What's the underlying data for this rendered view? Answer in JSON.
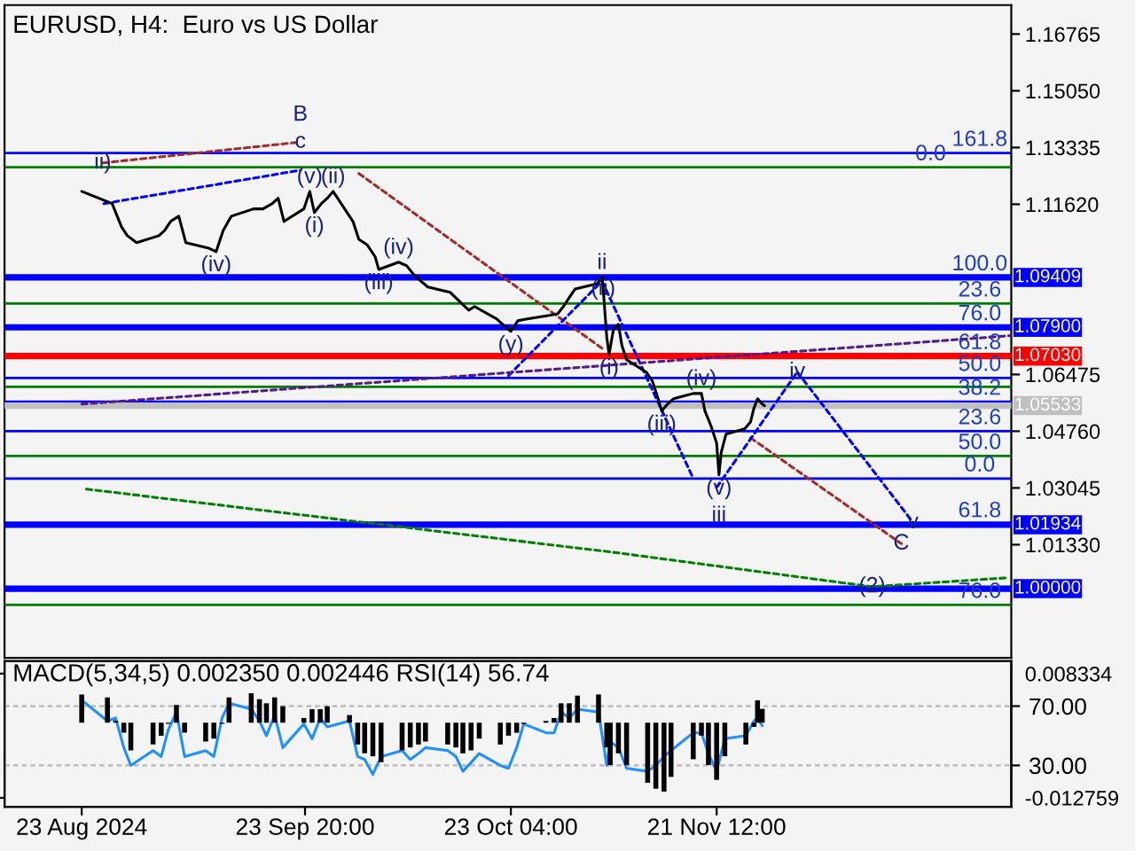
{
  "chart_data": [
    {
      "type": "line",
      "title": "EURUSD, H4:  Euro vs US Dollar",
      "tick_labels": "y",
      "grid": false,
      "xlim": [
        "2024-08-12T00:00",
        "2025-01-02T12:00"
      ],
      "ylim": [
        0.9791,
        1.1764
      ],
      "yticks": [
        1.16765,
        {
          "value": 1.1505,
          "label": "1.15050"
        },
        1.13335,
        {
          "value": 1.1162,
          "label": "1.11620"
        },
        1.06475,
        {
          "value": 1.0476,
          "label": "1.04760"
        },
        1.03045,
        {
          "value": 1.0133,
          "label": "1.01330"
        }
      ],
      "series": [
        {
          "color": "#000000",
          "line_style": "solid",
          "x": [
            "2024-08-23T00:00",
            "2024-08-26T04:00",
            "2024-08-27T08:00",
            "2024-08-28T16:00",
            "2024-08-29T12:00",
            "2024-08-30T20:00",
            "2024-09-03T00:00",
            "2024-09-03T20:00",
            "2024-09-04T16:00",
            "2024-09-05T20:00",
            "2024-09-06T20:00",
            "2024-09-10T00:00",
            "2024-09-11T04:00",
            "2024-09-12T04:00",
            "2024-09-13T08:00",
            "2024-09-16T12:00",
            "2024-09-17T20:00",
            "2024-09-19T04:00",
            "2024-09-20T00:00",
            "2024-09-20T20:00",
            "2024-09-23T16:00",
            "2024-09-24T12:00",
            "2024-09-25T04:00",
            "2024-09-26T04:00",
            "2024-09-27T00:00",
            "2024-09-27T20:00",
            "2024-09-30T16:00",
            "2024-10-01T12:00",
            "2024-10-02T16:00",
            "2024-10-03T20:00",
            "2024-10-04T08:00",
            "2024-10-07T04:00",
            "2024-10-08T08:00",
            "2024-10-09T08:00",
            "2024-10-10T04:00",
            "2024-10-11T08:00",
            "2024-10-14T12:00",
            "2024-10-15T20:00",
            "2024-10-17T04:00",
            "2024-10-18T00:00",
            "2024-10-21T04:00",
            "2024-10-22T00:00",
            "2024-10-23T04:00",
            "2024-10-24T04:00",
            "2024-10-25T08:00",
            "2024-10-28T16:00",
            "2024-10-29T20:00",
            "2024-10-30T16:00",
            "2024-10-31T12:00",
            "2024-11-01T08:00",
            "2024-11-04T12:00",
            "2024-11-05T04:00",
            "2024-11-05T08:00",
            "2024-11-05T20:00",
            "2024-11-06T04:00",
            "2024-11-06T20:00",
            "2024-11-07T12:00",
            "2024-11-08T00:00",
            "2024-11-08T16:00",
            "2024-11-11T12:00",
            "2024-11-12T08:00",
            "2024-11-13T04:00",
            "2024-11-13T16:00",
            "2024-11-14T12:00",
            "2024-11-15T08:00",
            "2024-11-18T04:00",
            "2024-11-19T08:00",
            "2024-11-19T20:00",
            "2024-11-20T16:00",
            "2024-11-21T12:00",
            "2024-11-21T20:00",
            "2024-11-22T04:00",
            "2024-11-22T20:00",
            "2024-11-25T12:00",
            "2024-11-26T08:00",
            "2024-11-26T20:00",
            "2024-11-27T08:00",
            "2024-11-28T00:00",
            "2024-11-28T08:00"
          ],
          "values": [
            1.1201,
            1.1174,
            1.1164,
            1.1094,
            1.1067,
            1.1046,
            1.1067,
            1.1083,
            1.111,
            1.1126,
            1.1046,
            1.103,
            1.1019,
            1.1083,
            1.1126,
            1.1148,
            1.1148,
            1.1164,
            1.118,
            1.111,
            1.1148,
            1.1201,
            1.1137,
            1.1164,
            1.118,
            1.1201,
            1.111,
            1.1056,
            1.104,
            1.1003,
            1.0965,
            1.0987,
            1.0976,
            1.0949,
            1.0933,
            1.0912,
            1.0896,
            1.0869,
            1.0842,
            1.0853,
            1.0815,
            1.0799,
            1.0778,
            1.081,
            1.0815,
            1.0826,
            1.0831,
            1.0853,
            1.088,
            1.0906,
            1.0922,
            1.0941,
            1.0905,
            1.0762,
            1.0708,
            1.0788,
            1.0799,
            1.0735,
            1.0692,
            1.0654,
            1.0628,
            1.0574,
            1.0537,
            1.0558,
            1.0574,
            1.059,
            1.059,
            1.0537,
            1.0494,
            1.044,
            1.0344,
            1.0413,
            1.0467,
            1.0483,
            1.0504,
            1.0547,
            1.0574,
            1.0558,
            1.0553
          ]
        },
        {
          "color": "#a52a2a",
          "line_style": "dashed",
          "x": [
            "2024-08-26T00:00",
            "2024-09-23T04:00"
          ],
          "values": [
            1.1287,
            1.135
          ]
        },
        {
          "color": "#a52a2a",
          "line_style": "dashed",
          "x": [
            "2024-10-01T12:00",
            "2024-11-05T08:00"
          ],
          "values": [
            1.1255,
            1.0724
          ]
        },
        {
          "color": "#a52a2a",
          "line_style": "dashed",
          "x": [
            "2024-11-26T08:00",
            "2024-12-17T20:00"
          ],
          "values": [
            1.0456,
            1.0136
          ]
        },
        {
          "color": "#0000ff",
          "line_style": "dashed",
          "x": [
            "2024-08-26T04:00",
            "2024-09-23T04:00"
          ],
          "values": [
            1.1164,
            1.1265
          ]
        },
        {
          "color": "#0000ff",
          "line_style": "dashed",
          "x": [
            "2024-10-22T20:00",
            "2024-11-05T04:00"
          ],
          "values": [
            1.0644,
            1.093
          ]
        },
        {
          "color": "#0000ff",
          "line_style": "dashed",
          "x": [
            "2024-11-05T04:00",
            "2024-11-18T04:00"
          ],
          "values": [
            1.093,
            1.0333
          ]
        },
        {
          "color": "#0000ff",
          "line_style": "dashed",
          "x": [
            "2024-11-21T12:00",
            "2024-12-03T00:00"
          ],
          "values": [
            1.0306,
            1.0655
          ]
        },
        {
          "color": "#0000ff",
          "line_style": "dashed",
          "x": [
            "2024-12-03T00:00",
            "2024-12-19T12:00"
          ],
          "values": [
            1.0655,
            1.02
          ]
        },
        {
          "color": "#551a8b",
          "line_style": "dashed",
          "x": [
            "2024-08-23T00:00",
            "2025-01-02T12:00"
          ],
          "values": [
            1.0558,
            1.0765
          ]
        },
        {
          "color": "#008000",
          "line_style": "dashed",
          "x": [
            "2024-08-23T16:00",
            "2024-11-07T12:00",
            "2024-12-13T16:00",
            "2025-01-02T00:00"
          ],
          "values": [
            1.0301,
            1.0108,
            1.0006,
            1.0033
          ]
        }
      ],
      "ref_lines": [
        {
          "axis": "y",
          "value": 1.1274,
          "color": "#008000",
          "line_style": "solid"
        },
        {
          "axis": "y",
          "value": 1.0862,
          "color": "#008000",
          "line_style": "solid"
        },
        {
          "axis": "y",
          "value": 1.061,
          "color": "#008000",
          "line_style": "solid"
        },
        {
          "axis": "y",
          "value": 1.0401,
          "color": "#008000",
          "line_style": "solid"
        },
        {
          "axis": "y",
          "value": 1.0195,
          "color": "#008000",
          "line_style": "solid"
        },
        {
          "axis": "y",
          "value": 0.9951,
          "color": "#008000",
          "line_style": "solid"
        },
        {
          "axis": "y",
          "value": 1.1317,
          "color": "#0000ff",
          "line_style": "solid"
        },
        {
          "axis": "y",
          "value": 1.0637,
          "color": "#0000ff",
          "line_style": "solid"
        },
        {
          "axis": "y",
          "value": 1.0565,
          "color": "#0000ff",
          "line_style": "solid"
        },
        {
          "axis": "y",
          "value": 1.0476,
          "color": "#0000ff",
          "line_style": "solid"
        },
        {
          "axis": "y",
          "value": 1.0333,
          "color": "#0000ff",
          "line_style": "solid"
        },
        {
          "axis": "y",
          "value": 1.05533,
          "label": "1.05533",
          "color": "#c0c0c0",
          "line_style": "solid"
        },
        {
          "axis": "y",
          "value": 1.09409,
          "label": "1.09409",
          "color": "#0000ff",
          "line_style": "solid"
        },
        {
          "axis": "y",
          "value": 1.079,
          "label": "1.07900",
          "color": "#0000ff",
          "line_style": "solid"
        },
        {
          "axis": "y",
          "value": 1.0703,
          "label": "1.07030",
          "color": "#ff0000",
          "line_style": "solid"
        },
        {
          "axis": "y",
          "value": 1.01934,
          "label": "1.01934",
          "color": "#0000ff",
          "line_style": "solid"
        },
        {
          "axis": "y",
          "value": 1.0,
          "label": "1.00000",
          "color": "#0000ff",
          "line_style": "solid"
        }
      ],
      "annotations": [
        {
          "text": "ii)",
          "x": "2024-08-26T00:00",
          "y": 1.1287
        },
        {
          "text": "(v)",
          "x": "2024-09-24T12:00",
          "y": 1.1201
        },
        {
          "text": "c",
          "x": "2024-09-23T04:00",
          "y": 1.135
        },
        {
          "text": "B",
          "x": "2024-09-23T04:00",
          "y": 1.135
        },
        {
          "text": "(ii)",
          "x": "2024-09-27T20:00",
          "y": 1.1201
        },
        {
          "text": "(i)",
          "x": "2024-09-25T04:00",
          "y": 1.1137
        },
        {
          "text": "(iv)",
          "x": "2024-10-07T04:00",
          "y": 1.0987
        },
        {
          "text": "(iv)",
          "x": "2024-09-11T04:00",
          "y": 1.1019
        },
        {
          "text": "(iii)",
          "x": "2024-10-04T08:00",
          "y": 1.0965
        },
        {
          "text": "(ii)",
          "x": "2024-11-05T08:00",
          "y": 1.0905
        },
        {
          "text": "ii",
          "x": "2024-11-05T04:00",
          "y": 1.0941
        },
        {
          "text": "(y)",
          "x": "2024-10-23T04:00",
          "y": 1.0778
        },
        {
          "text": "(i)",
          "x": "2024-11-06T04:00",
          "y": 1.0708
        },
        {
          "text": "(iv)",
          "x": "2024-11-19T08:00",
          "y": 1.059
        },
        {
          "text": "iv",
          "x": "2024-12-03T00:00",
          "y": 1.0655
        },
        {
          "text": "(iii)",
          "x": "2024-11-13T16:00",
          "y": 1.0537
        },
        {
          "text": "(v)",
          "x": "2024-11-21T20:00",
          "y": 1.0344
        },
        {
          "text": "iii",
          "x": "2024-11-21T20:00",
          "y": 1.0344
        },
        {
          "text": "v",
          "x": "2024-12-19T12:00",
          "y": 1.02
        },
        {
          "text": "C",
          "x": "2024-12-17T20:00",
          "y": 1.0136
        },
        {
          "text": "(2)",
          "x": "2024-12-13T16:00",
          "y": 1.0006
        },
        {
          "text": "161.8",
          "x": "2024-12-29T00:00",
          "y": 1.1317
        },
        {
          "text": "0.0",
          "x": "2024-12-22T00:00",
          "y": 1.1274
        },
        {
          "text": "100.0",
          "x": "2024-12-29T00:00",
          "y": 1.09409
        },
        {
          "text": "23.6",
          "x": "2024-12-29T00:00",
          "y": 1.0862
        },
        {
          "text": "76.0",
          "x": "2024-12-29T00:00",
          "y": 1.079
        },
        {
          "text": "61.8",
          "x": "2024-12-29T00:00",
          "y": 1.0703
        },
        {
          "text": "50.0",
          "x": "2024-12-29T00:00",
          "y": 1.0637
        },
        {
          "text": "38.2",
          "x": "2024-12-29T00:00",
          "y": 1.0565
        },
        {
          "text": "23.6",
          "x": "2024-12-29T00:00",
          "y": 1.0476
        },
        {
          "text": "50.0",
          "x": "2024-12-29T00:00",
          "y": 1.0401
        },
        {
          "text": "0.0",
          "x": "2024-12-29T00:00",
          "y": 1.0333
        },
        {
          "text": "61.8",
          "x": "2024-12-29T00:00",
          "y": 1.0195
        },
        {
          "text": "76.0",
          "x": "2024-12-29T00:00",
          "y": 0.9951
        }
      ]
    },
    {
      "type": "bar",
      "title": "MACD(5,34,5) 0.002350 0.002446 RSI(14) 56.74",
      "grid": false,
      "xlim": [
        "2024-08-12T00:00",
        "2025-01-02T12:00"
      ],
      "ylim": [
        -0.01427,
        0.01044
      ],
      "yticks": [
        0.008334,
        -0.012759
      ],
      "y2lim": [
        2.1,
        100.3
      ],
      "y2ticks": [
        {
          "value": 70,
          "label": "70.00"
        },
        {
          "value": 30,
          "label": "30.00"
        }
      ],
      "xticks": [
        {
          "value": "2024-08-23T00:00",
          "label": "23 Aug 2024"
        },
        {
          "value": "2024-09-23T20:00",
          "label": "23 Sep 20:00"
        },
        {
          "value": "2024-10-23T04:00",
          "label": "23 Oct 04:00"
        },
        {
          "value": "2024-11-21T12:00",
          "label": "21 Nov 12:00"
        }
      ],
      "x": [
        "2024-08-23T00:00",
        "2024-08-26T16:00",
        "2024-08-27T20:00",
        "2024-08-29T00:00",
        "2024-08-30T00:00",
        "2024-09-02T04:00",
        "2024-09-03T08:00",
        "2024-09-04T08:00",
        "2024-09-05T12:00",
        "2024-09-06T16:00",
        "2024-09-09T16:00",
        "2024-09-10T20:00",
        "2024-09-12T00:00",
        "2024-09-13T00:00",
        "2024-09-16T04:00",
        "2024-09-17T08:00",
        "2024-09-18T08:00",
        "2024-09-19T12:00",
        "2024-09-20T16:00",
        "2024-09-23T16:00",
        "2024-09-24T20:00",
        "2024-09-26T00:00",
        "2024-09-27T00:00",
        "2024-09-30T04:00",
        "2024-10-01T08:00",
        "2024-10-02T08:00",
        "2024-10-03T12:00",
        "2024-10-04T16:00",
        "2024-10-07T16:00",
        "2024-10-08T20:00",
        "2024-10-10T00:00",
        "2024-10-11T00:00",
        "2024-10-14T04:00",
        "2024-10-15T08:00",
        "2024-10-16T08:00",
        "2024-10-17T12:00",
        "2024-10-18T16:00",
        "2024-10-21T16:00",
        "2024-10-22T20:00",
        "2024-10-24T00:00",
        "2024-10-25T00:00",
        "2024-10-28T04:00",
        "2024-10-29T08:00",
        "2024-10-30T08:00",
        "2024-10-31T12:00",
        "2024-11-01T16:00",
        "2024-11-04T16:00",
        "2024-11-05T20:00",
        "2024-11-06T08:00",
        "2024-11-07T12:00",
        "2024-11-08T16:00",
        "2024-11-11T16:00",
        "2024-11-12T20:00",
        "2024-11-14T00:00",
        "2024-11-15T00:00",
        "2024-11-18T04:00",
        "2024-11-19T08:00",
        "2024-11-20T08:00",
        "2024-11-21T12:00",
        "2024-11-22T16:00",
        "2024-11-25T16:00",
        "2024-11-26T20:00",
        "2024-11-27T08:00",
        "2024-11-28T00:00"
      ],
      "series": [
        {
          "type": "bar",
          "color": "#000000",
          "values": [
            0.0048,
            0.0043,
            0.0003,
            -0.0017,
            -0.0047,
            -0.0037,
            -0.0022,
            -0.0002,
            0.003,
            -0.0017,
            -0.0032,
            -0.0027,
            -0.0002,
            0.0043,
            0.005,
            0.004,
            0.0033,
            0.0043,
            0.0028,
            0.0008,
            0.0023,
            0.0023,
            0.0028,
            0.0013,
            -0.0037,
            -0.0052,
            -0.0057,
            -0.0067,
            -0.0047,
            -0.0042,
            -0.0037,
            -0.0032,
            -0.0037,
            -0.0042,
            -0.0052,
            -0.0047,
            -0.0027,
            -0.0037,
            -0.0022,
            -0.0017,
            -0.0002,
            0.0003,
            0.0008,
            0.0033,
            0.0033,
            0.0046,
            0.0048,
            -0.0042,
            -0.0072,
            -0.0052,
            -0.0072,
            -0.0102,
            -0.0112,
            -0.0117,
            -0.0092,
            -0.0062,
            -0.0022,
            -0.0072,
            -0.0097,
            -0.0057,
            -0.0037,
            -0.0007,
            0.0038,
            0.00235
          ]
        },
        {
          "type": "line",
          "axis": "y2",
          "color": "#1e90ff",
          "line_style": "solid",
          "values": [
            74,
            60,
            62,
            42,
            30,
            40,
            36,
            54,
            66,
            36,
            40,
            36,
            62,
            72,
            68,
            60,
            50,
            64,
            42,
            58,
            48,
            62,
            56,
            60,
            36,
            34,
            24,
            36,
            40,
            34,
            38,
            42,
            40,
            36,
            26,
            32,
            38,
            30,
            28,
            42,
            58,
            52,
            52,
            66,
            62,
            68,
            66,
            30,
            46,
            42,
            28,
            26,
            30,
            36,
            40,
            52,
            52,
            38,
            26,
            48,
            50,
            60,
            62,
            56.74
          ]
        }
      ],
      "ref_lines": [
        {
          "axis": "y2",
          "value": 70,
          "color": "#c0c0c0",
          "line_style": "dashed"
        },
        {
          "axis": "y2",
          "value": 30,
          "color": "#c0c0c0",
          "line_style": "dashed"
        }
      ]
    }
  ]
}
